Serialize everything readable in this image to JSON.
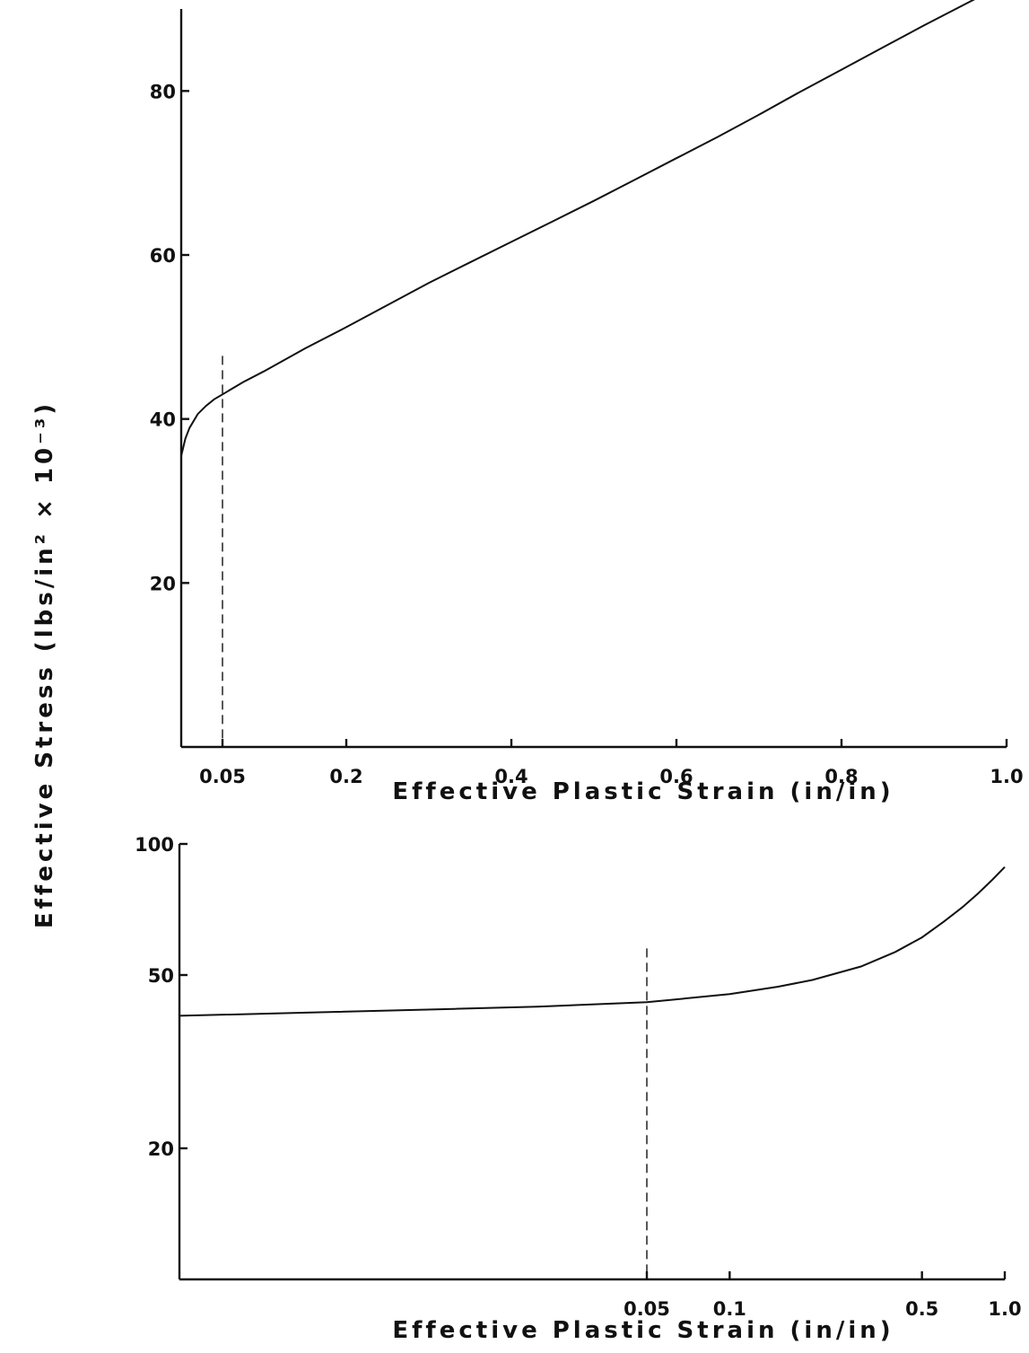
{
  "shared_ylabel": "Effective Stress (lbs/in² × 10⁻³)",
  "chart_data": [
    {
      "type": "line",
      "xscale": "linear",
      "yscale": "linear",
      "xlabel": "Effective Plastic Strain (in/in)",
      "ylabel": "Effective Stress (lbs/in² × 10⁻³)",
      "xlim": [
        0,
        1.0
      ],
      "ylim": [
        0,
        90
      ],
      "xticks": [
        {
          "value": 0.05,
          "label": "0.05"
        },
        {
          "value": 0.2,
          "label": "0.2"
        },
        {
          "value": 0.4,
          "label": "0.4"
        },
        {
          "value": 0.6,
          "label": "0.6"
        },
        {
          "value": 0.8,
          "label": "0.8"
        },
        {
          "value": 1.0,
          "label": "1.0"
        }
      ],
      "yticks": [
        {
          "value": 20,
          "label": "20"
        },
        {
          "value": 40,
          "label": "40"
        },
        {
          "value": 60,
          "label": "60"
        },
        {
          "value": 80,
          "label": "80"
        }
      ],
      "series": [
        {
          "x": [
            0.0,
            0.005,
            0.01,
            0.02,
            0.03,
            0.04,
            0.05,
            0.075,
            0.1,
            0.15,
            0.2,
            0.25,
            0.3,
            0.35,
            0.4,
            0.45,
            0.5,
            0.55,
            0.6,
            0.65,
            0.7,
            0.75,
            0.8,
            0.85,
            0.9,
            0.95,
            1.0
          ],
          "y": [
            35.5,
            37.6,
            38.9,
            40.6,
            41.6,
            42.4,
            43.0,
            44.5,
            45.8,
            48.6,
            51.2,
            53.9,
            56.6,
            59.1,
            61.6,
            64.1,
            66.6,
            69.2,
            71.8,
            74.4,
            77.1,
            79.9,
            82.6,
            85.3,
            88.0,
            90.6,
            93.2
          ]
        }
      ],
      "reference_lines": [
        {
          "axis": "x",
          "value": 0.05,
          "style": "dashed"
        }
      ],
      "grid": false
    },
    {
      "type": "line",
      "xscale": "log",
      "yscale": "log",
      "xlabel": "Effective Plastic Strain (in/in)",
      "ylabel": "Effective Stress (lbs/in² × 10⁻³)",
      "xlim": [
        0.001,
        1.0
      ],
      "ylim": [
        10,
        100
      ],
      "xticks": [
        {
          "value": 0.05,
          "label": "0.05"
        },
        {
          "value": 0.1,
          "label": "0.1"
        },
        {
          "value": 0.5,
          "label": "0.5"
        },
        {
          "value": 1.0,
          "label": "1.0"
        }
      ],
      "yticks": [
        {
          "value": 20,
          "label": "20"
        },
        {
          "value": 50,
          "label": "50"
        },
        {
          "value": 100,
          "label": "100"
        }
      ],
      "series": [
        {
          "x": [
            0.001,
            0.003,
            0.01,
            0.02,
            0.05,
            0.1,
            0.15,
            0.2,
            0.3,
            0.4,
            0.5,
            0.6,
            0.7,
            0.8,
            0.9,
            1.0
          ],
          "y": [
            40.3,
            41.0,
            41.8,
            42.3,
            43.3,
            45.2,
            47.0,
            48.7,
            52.3,
            56.5,
            61.0,
            66.3,
            71.5,
            77.0,
            82.7,
            88.5
          ]
        }
      ],
      "reference_lines": [
        {
          "axis": "x",
          "value": 0.05,
          "style": "dashed"
        }
      ],
      "grid": false
    }
  ]
}
